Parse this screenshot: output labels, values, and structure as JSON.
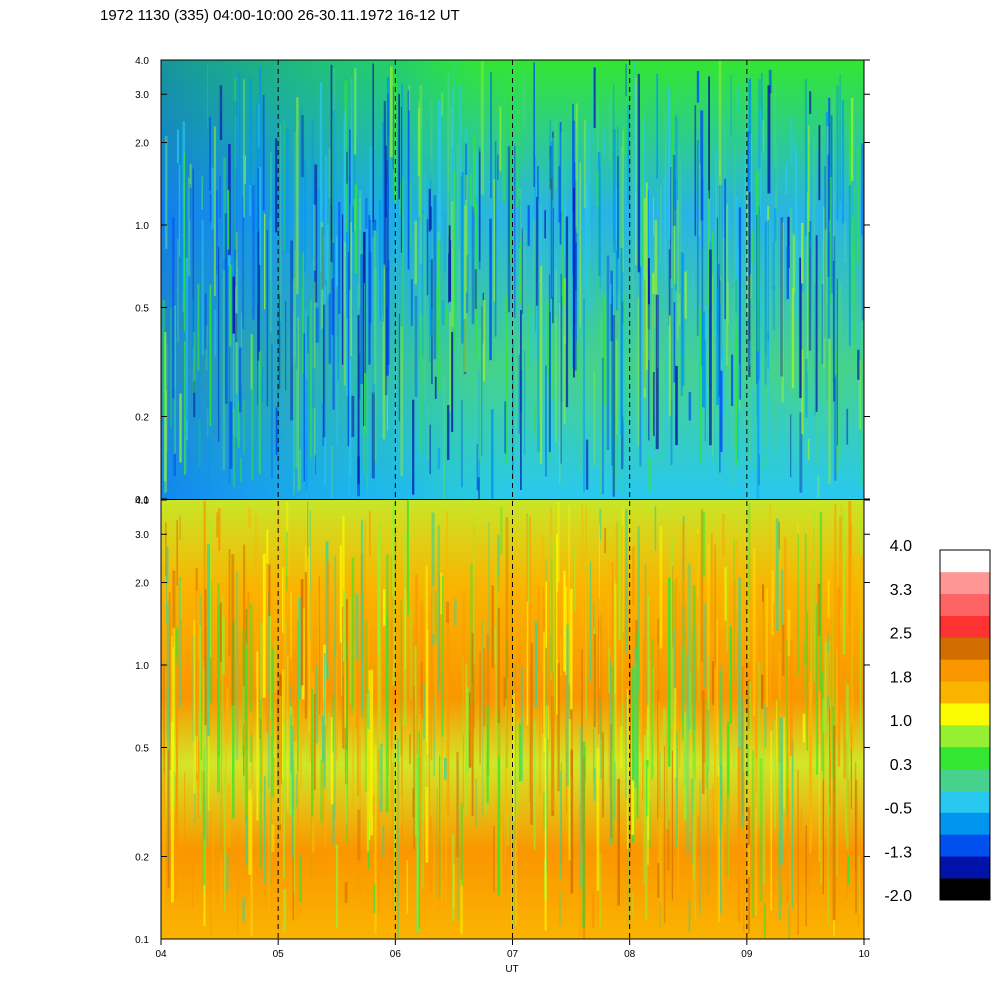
{
  "chart_data": {
    "type": "heatmap",
    "title": "1972 1130 (335) 04:00-10:00 26-30.11.1972  16-12 UT",
    "xlabel": "UT",
    "x_ticks": [
      "04",
      "05",
      "06",
      "07",
      "08",
      "09",
      "10"
    ],
    "x_range_hours": [
      4,
      10
    ],
    "panels": [
      {
        "name": "upper",
        "y_scale": "log",
        "y_range": [
          0.1,
          4.0
        ],
        "y_ticks": [
          {
            "value": 0.1,
            "label": "0.1"
          },
          {
            "value": 0.2,
            "label": "0.2"
          },
          {
            "value": 0.5,
            "label": "0.5"
          },
          {
            "value": 1.0,
            "label": "1.0"
          },
          {
            "value": 2.0,
            "label": "2.0"
          },
          {
            "value": 3.0,
            "label": "3.0"
          },
          {
            "value": 4.0,
            "label": "4.0"
          }
        ],
        "dominant_levels": [
          "-0.5",
          "0.3"
        ]
      },
      {
        "name": "lower",
        "y_scale": "log",
        "y_range": [
          0.1,
          4.0
        ],
        "y_ticks": [
          {
            "value": 0.1,
            "label": "0.1"
          },
          {
            "value": 0.2,
            "label": "0.2"
          },
          {
            "value": 0.5,
            "label": "0.5"
          },
          {
            "value": 1.0,
            "label": "1.0"
          },
          {
            "value": 2.0,
            "label": "2.0"
          },
          {
            "value": 3.0,
            "label": "3.0"
          },
          {
            "value": 4.0,
            "label": "4.0"
          }
        ],
        "dominant_levels": [
          "1.0",
          "1.8"
        ]
      }
    ],
    "dashed_gridlines_at_hours": [
      5,
      6,
      7,
      8,
      9
    ],
    "colorbar": {
      "colors": [
        "#000000",
        "#0012a8",
        "#0050f0",
        "#0096f0",
        "#28c8f0",
        "#46d28c",
        "#32e632",
        "#96f032",
        "#fafa00",
        "#fab400",
        "#fa9600",
        "#d26e00",
        "#ff3232",
        "#ff6464",
        "#ff9696",
        "#ffffff"
      ],
      "tick_labels": [
        "4.0",
        "3.3",
        "2.5",
        "1.8",
        "1.0",
        "0.3",
        "-0.5",
        "-1.3",
        "-2.0"
      ]
    }
  }
}
